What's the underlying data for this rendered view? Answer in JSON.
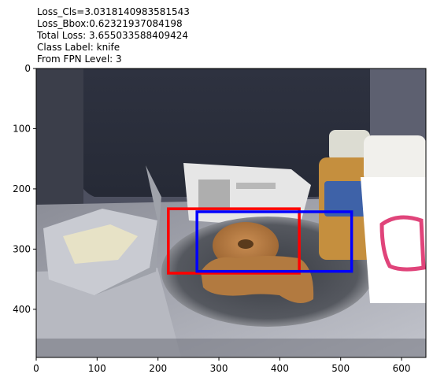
{
  "title_lines": [
    "Loss_Cls=3.0318140983581543",
    "Loss_Bbox:0.62321937084198",
    "Total Loss: 3.655033588409424",
    "Class Label: knife",
    "From FPN Level: 3"
  ],
  "axes": {
    "x_ticks": [
      0,
      100,
      200,
      300,
      400,
      500,
      600
    ],
    "y_ticks": [
      0,
      100,
      200,
      300,
      400
    ],
    "xlim": [
      0,
      640
    ],
    "ylim": [
      480,
      0
    ]
  },
  "boxes": [
    {
      "name": "red-bounding-box",
      "color": "#ff0000",
      "x0": 217,
      "y0": 233,
      "x1": 432,
      "y1": 340
    },
    {
      "name": "blue-bounding-box",
      "color": "#0000ff",
      "x0": 264,
      "y0": 238,
      "x1": 518,
      "y1": 337
    }
  ],
  "colors": {
    "red_box": "#ff0000",
    "blue_box": "#0000ff"
  }
}
